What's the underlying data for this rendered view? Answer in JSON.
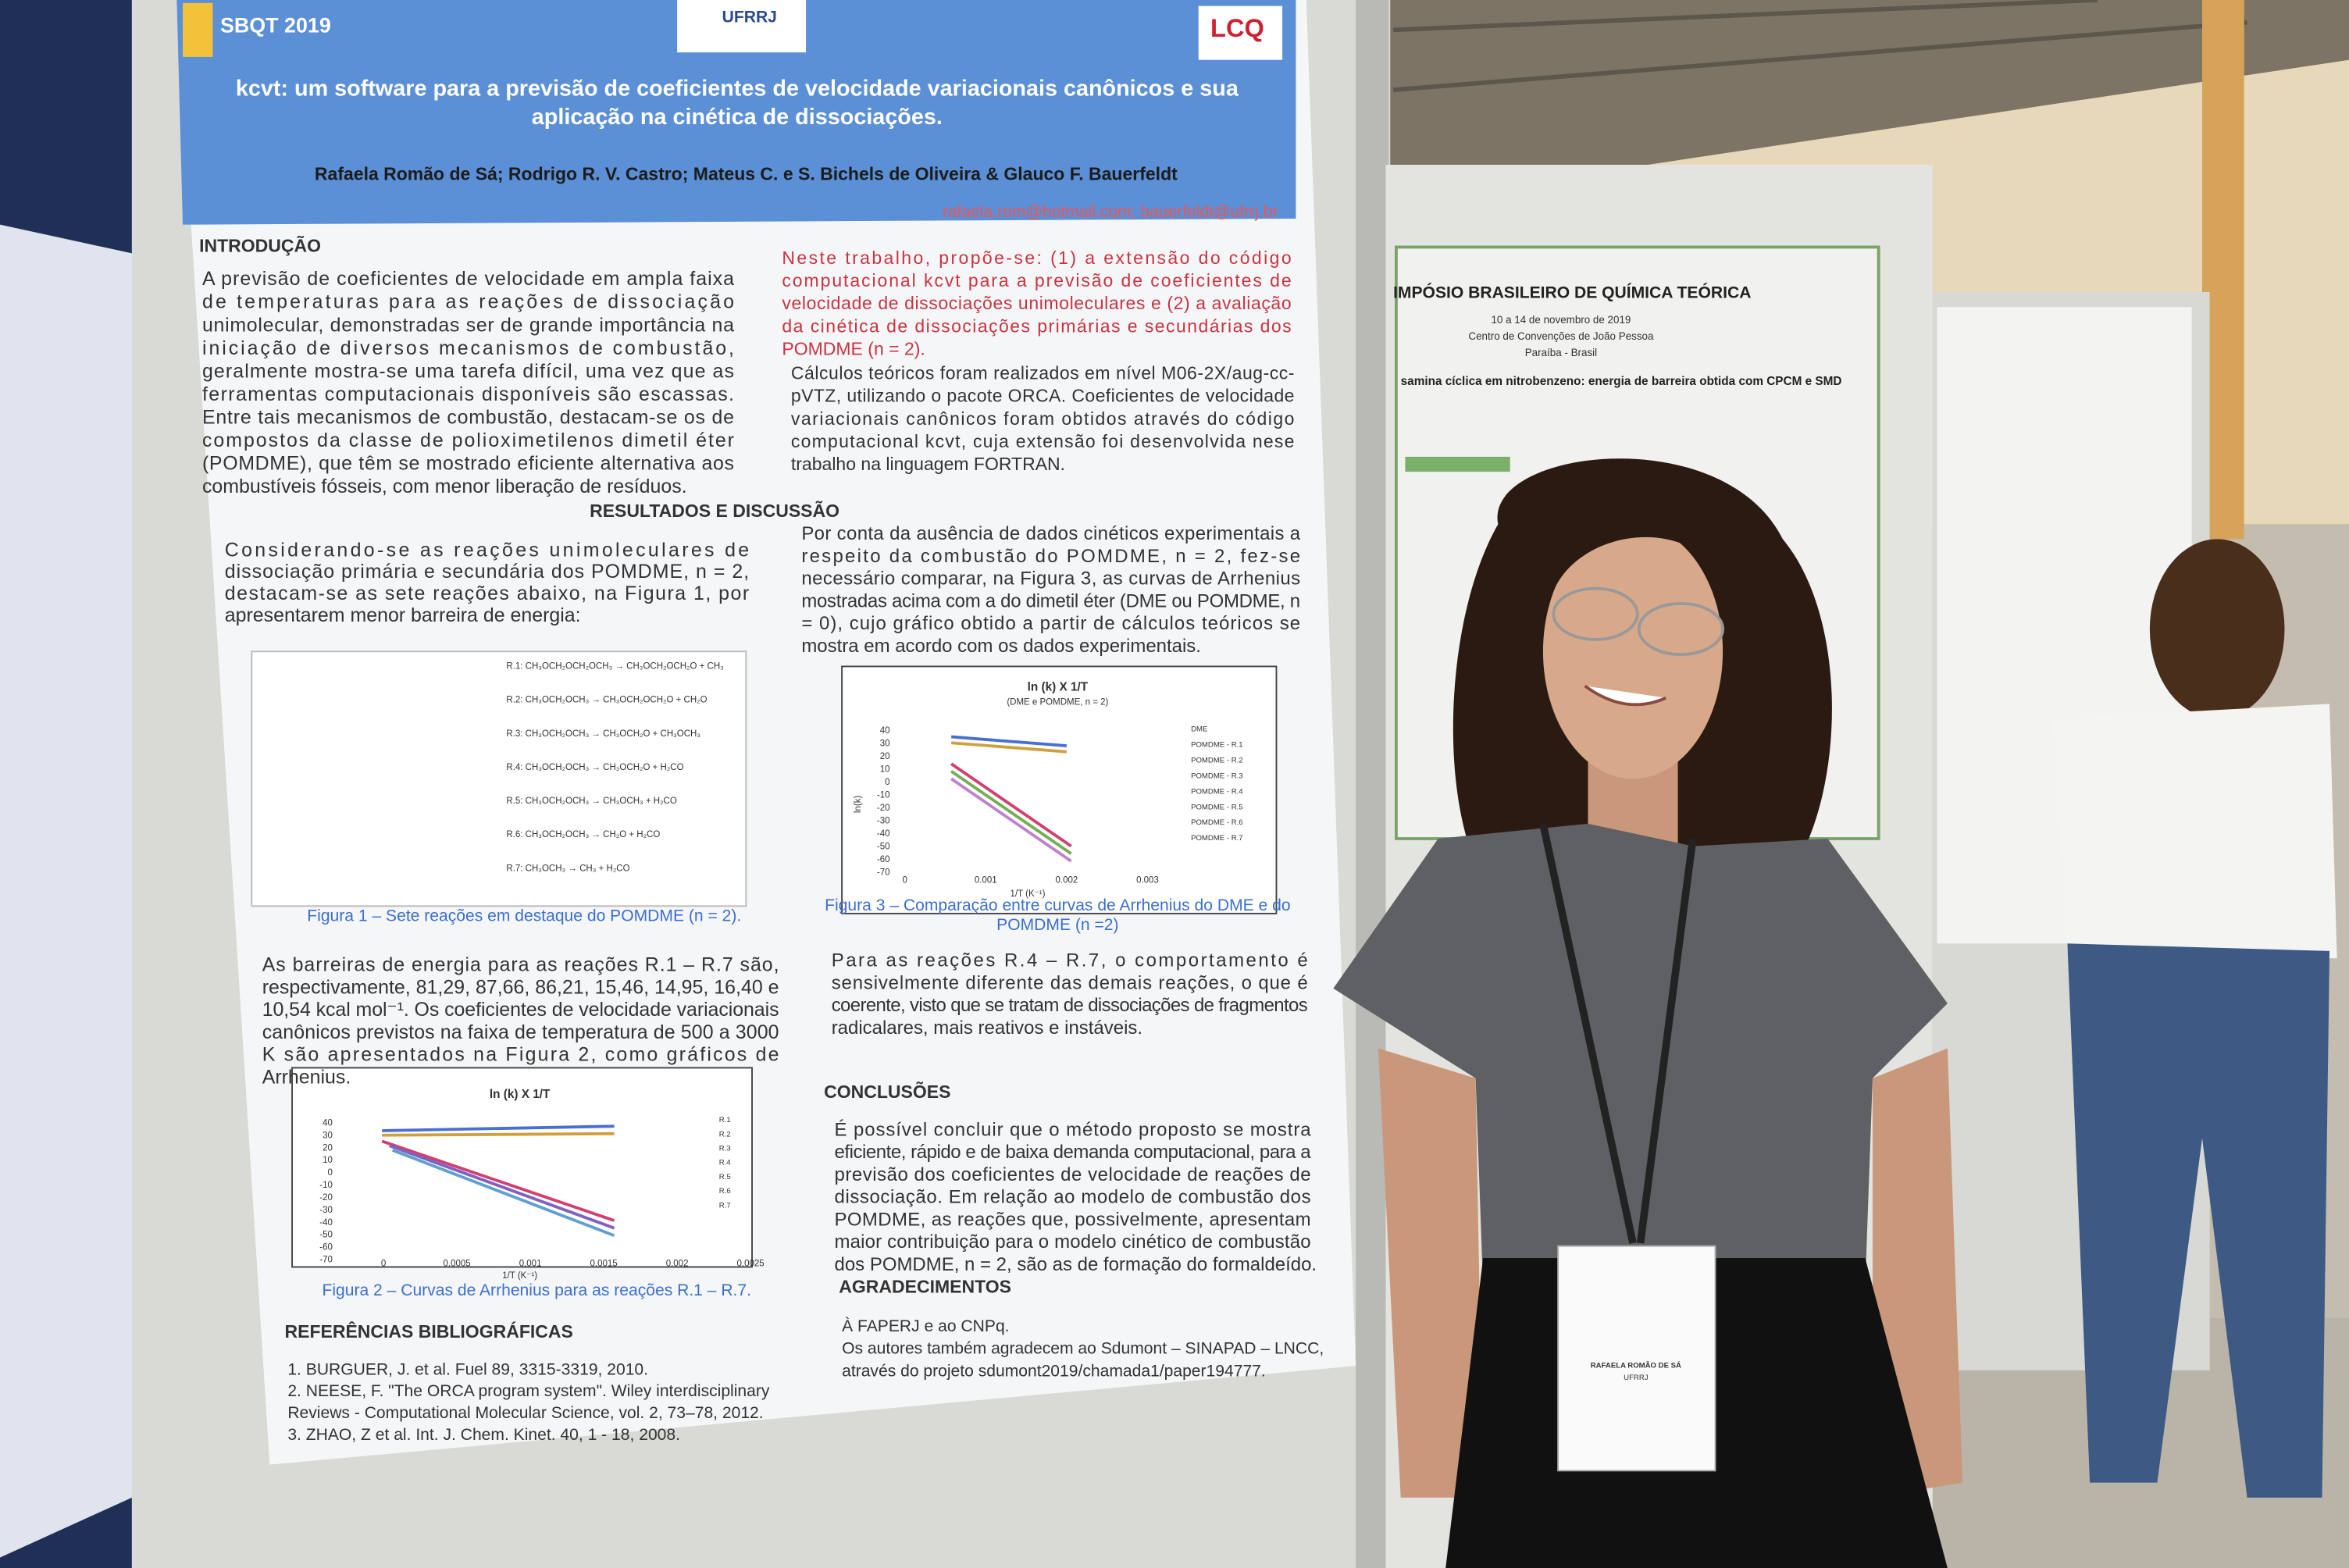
{
  "poster": {
    "header": {
      "event": "SBQT 2019",
      "logo_center": "UFRRJ",
      "logo_right": "LCQ"
    },
    "title": [
      "kcvt: um software para a previsão de coeficientes de velocidade variacionais canônicos e sua",
      "aplicação na cinética de dissociações."
    ],
    "authors": "Rafaela Romão de Sá; Rodrigo R. V. Castro; Mateus C. e S. Bichels de Oliveira &  Glauco F. Bauerfeldt",
    "email": "rafaela.rom@hotmail.com; bauerfeldt@ufrrj.br",
    "intro_heading": "INTRODUÇÃO",
    "intro": [
      "A previsão de coeficientes de velocidade em ampla faixa",
      "de temperaturas para as reações de dissociação",
      "unimolecular, demonstradas ser de grande importância na",
      "iniciação de diversos mecanismos de combustão,",
      "geralmente mostra-se uma tarefa difícil, uma vez que as",
      "ferramentas computacionais disponíveis são escassas.",
      "Entre tais mecanismos de combustão, destacam-se os de",
      "compostos da classe de polioximetilenos dimetil éter",
      "(POMDME), que têm se mostrado eficiente alternativa aos",
      "combustíveis fósseis, com menor liberação de resíduos."
    ],
    "objectives": [
      "Neste trabalho, propõe-se: (1) a extensão do código",
      "computacional kcvt para a previsão de coeficientes de",
      "velocidade de dissociações unimoleculares e (2) a avaliação",
      "da cinética de dissociações primárias e secundárias dos",
      "POMDME (n = 2)."
    ],
    "methods": [
      "Cálculos teóricos foram realizados em nível M06-2X/aug-cc-",
      "pVTZ, utilizando o pacote ORCA. Coeficientes de velocidade",
      "variacionais canônicos foram obtidos através do código",
      "computacional kcvt, cuja extensão foi desenvolvida nese",
      "trabalho na linguagem FORTRAN."
    ],
    "results_heading": "RESULTADOS E DISCUSSÃO",
    "results_left": [
      "Considerando-se as reações unimoleculares de",
      "dissociação primária e secundária dos POMDME, n = 2,",
      "destacam-se as sete reações abaixo, na Figura 1, por",
      "apresentarem menor barreira de energia:"
    ],
    "figure1": {
      "reactions": [
        "R.1: CH₃OCH₂OCH₂OCH₃ → CH₃OCH₂OCH₂O + CH₃",
        "R.2: CH₃OCH₂OCH₃ → CH₃OCH₂OCH₂O + CH₂O",
        "R.3: CH₃OCH₂OCH₃ → CH₃OCH₂O + CH₃OCH₃",
        "R.4: CH₃OCH₂OCH₃ → CH₃OCH₂O + H₂CO",
        "R.5: CH₃OCH₂OCH₃ → CH₃OCH₃ + H₂CO",
        "R.6: CH₃OCH₂OCH₃ → CH₂O + H₂CO",
        "R.7: CH₃OCH₃ → CH₃ + H₂CO"
      ],
      "caption": "Figura 1 – Sete reações em destaque do POMDME (n = 2)."
    },
    "barriers": [
      "As barreiras de energia para as reações R.1 – R.7 são,",
      "respectivamente, 81,29, 87,66, 86,21, 15,46, 14,95, 16,40 e",
      "10,54 kcal mol⁻¹. Os coeficientes de velocidade variacionais",
      "canônicos previstos na faixa de temperatura de 500 a 3000",
      "K são apresentados na Figura 2, como gráficos de",
      "Arrhenius."
    ],
    "figure2": {
      "title": "ln (k) X 1/T",
      "yticks": [
        "40",
        "30",
        "20",
        "10",
        "0",
        "-10",
        "-20",
        "-30",
        "-40",
        "-50",
        "-60",
        "-70"
      ],
      "xticks": [
        "0",
        "0.0005",
        "0.001",
        "0.0015",
        "0.002",
        "0.0025"
      ],
      "xlabel": "1/T (K⁻¹)",
      "legend": [
        "R.1",
        "R.2",
        "R.3",
        "R.4",
        "R.5",
        "R.6",
        "R.7"
      ],
      "caption": "Figura 2 – Curvas de Arrhenius para as reações R.1 – R.7."
    },
    "refs_heading": "REFERÊNCIAS BIBLIOGRÁFICAS",
    "refs": [
      "1. BURGUER, J. et al. Fuel 89, 3315-3319, 2010.",
      "2. NEESE, F. \"The ORCA program system\". Wiley interdisciplinary",
      "Reviews - Computational Molecular Science, vol. 2, 73–78, 2012.",
      "3. ZHAO, Z et al. Int. J. Chem. Kinet. 40, 1 - 18, 2008."
    ],
    "results_right": [
      "Por conta da ausência de dados cinéticos experimentais a",
      "respeito da combustão do POMDME, n = 2, fez-se",
      "necessário comparar, na Figura 3, as curvas de Arrhenius",
      "mostradas acima com a do dimetil éter (DME ou POMDME, n",
      "= 0), cujo gráfico obtido a partir de cálculos teóricos se",
      "mostra em acordo com os dados experimentais."
    ],
    "figure3": {
      "title": "ln (k) X 1/T",
      "subtitle": "(DME e POMDME, n = 2)",
      "yticks": [
        "40",
        "30",
        "20",
        "10",
        "0",
        "-10",
        "-20",
        "-30",
        "-40",
        "-50",
        "-60",
        "-70"
      ],
      "xticks": [
        "0",
        "0.001",
        "0.002",
        "0.003"
      ],
      "xlabel": "1/T (K⁻¹)",
      "ylabel": "ln(k)",
      "legend": [
        "DME",
        "POMDME - R.1",
        "POMDME - R.2",
        "POMDME - R.3",
        "POMDME - R.4",
        "POMDME - R.5",
        "POMDME - R.6",
        "POMDME - R.7"
      ],
      "caption": [
        "Figura 3 – Comparação entre curvas de Arrhenius do DME e do",
        "POMDME  (n =2)"
      ]
    },
    "discussion": [
      "Para as reações R.4 – R.7, o comportamento é",
      "sensivelmente diferente das demais reações, o que é",
      "coerente, visto que se tratam de dissociações de fragmentos",
      "radicalares, mais reativos e instáveis."
    ],
    "conclusions_heading": "CONCLUSÕES",
    "conclusions": [
      "É possível concluir que o método proposto se mostra",
      "eficiente, rápido e de baixa demanda computacional, para a",
      "previsão dos coeficientes de velocidade de reações de",
      "dissociação. Em relação ao modelo de combustão dos",
      "POMDME, as reações que, possivelmente, apresentam",
      "maior contribuição para o modelo cinético de combustão",
      "dos POMDME, n = 2, são as de formação do formaldeído."
    ],
    "ack_heading": "AGRADECIMENTOS",
    "ack": [
      "À FAPERJ e ao CNPq.",
      "Os autores também agradecem ao Sdumont – SINAPAD – LNCC,",
      "através do projeto sdumont2019/chamada1/paper194777."
    ]
  },
  "neighbor_poster": {
    "title": "IMPÓSIO BRASILEIRO DE QUÍMICA TEÓRICA",
    "lines": [
      "10 a 14 de novembro de 2019",
      "Centro de Convenções de João Pessoa",
      "Paraíba - Brasil"
    ],
    "subtitle": "samina cíclica em nitrobenzeno: energia de barreira obtida com CPCM e SMD"
  },
  "badge": {
    "name": "RAFAELA ROMÃO DE SÁ",
    "institution": "UFRRJ"
  }
}
